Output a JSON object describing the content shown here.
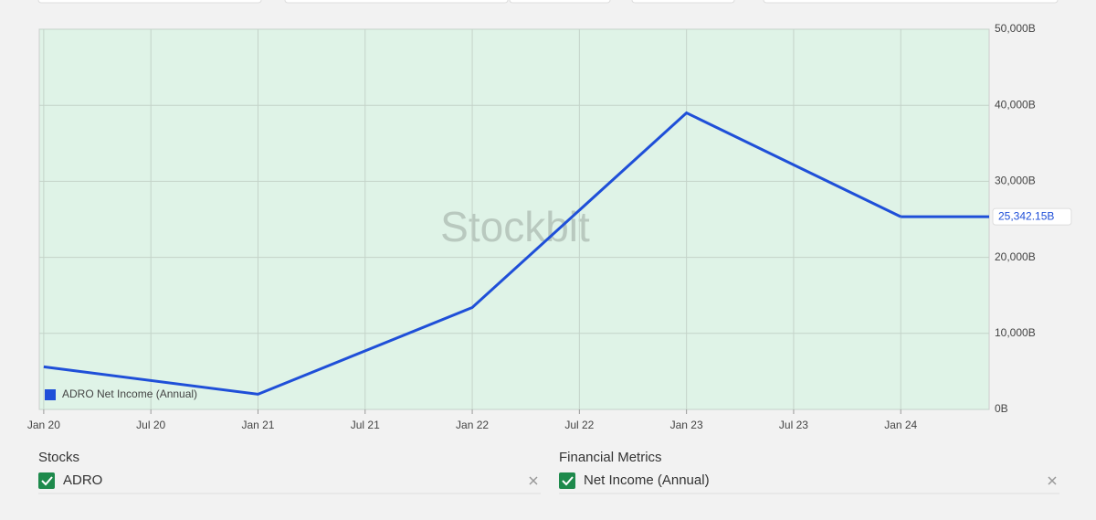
{
  "chart_data": {
    "type": "line",
    "watermark": "Stockbit",
    "x": [
      "Jan 20",
      "Jan 21",
      "Jan 22",
      "Jan 23",
      "Jan 24"
    ],
    "series": [
      {
        "name": "ADRO Net Income (Annual)",
        "color": "#1f4fd8",
        "values": [
          5600,
          2000,
          13400,
          39000,
          25342.15
        ],
        "value_labels": [
          null,
          null,
          null,
          null,
          "25,342.15B"
        ]
      }
    ],
    "xticks": [
      "Jan 20",
      "Jul 20",
      "Jan 21",
      "Jul 21",
      "Jan 22",
      "Jul 22",
      "Jan 23",
      "Jul 23",
      "Jan 24"
    ],
    "ylim": [
      0,
      50000
    ],
    "yticks": [
      {
        "value": 0,
        "label": "0B"
      },
      {
        "value": 10000,
        "label": "10,000B"
      },
      {
        "value": 20000,
        "label": "20,000B"
      },
      {
        "value": 30000,
        "label": "30,000B"
      },
      {
        "value": 40000,
        "label": "40,000B"
      },
      {
        "value": 50000,
        "label": "50,000B"
      }
    ],
    "grid": true
  },
  "stocks": {
    "title": "Stocks",
    "items": [
      "ADRO"
    ]
  },
  "metrics": {
    "title": "Financial Metrics",
    "items": [
      "Net Income (Annual)"
    ]
  }
}
